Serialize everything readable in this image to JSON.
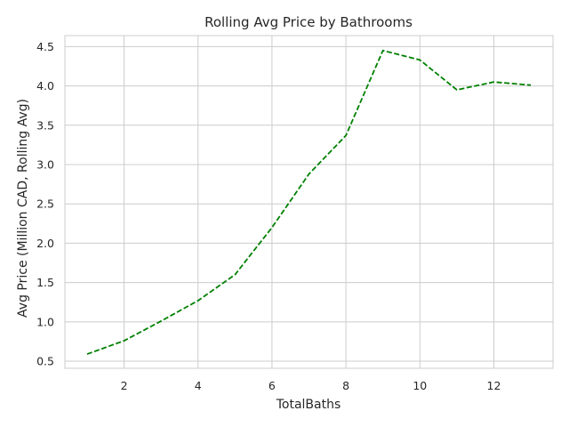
{
  "chart_data": {
    "type": "line",
    "title": "Rolling Avg Price by Bathrooms",
    "xlabel": "TotalBaths",
    "ylabel": "Avg Price (Million CAD, Rolling Avg)",
    "xlim": [
      0.4,
      13.6
    ],
    "ylim": [
      0.41,
      4.64
    ],
    "xticks": [
      2,
      4,
      6,
      8,
      10,
      12
    ],
    "yticks": [
      0.5,
      1.0,
      1.5,
      2.0,
      2.5,
      3.0,
      3.5,
      4.0,
      4.5
    ],
    "xtick_labels": [
      "2",
      "4",
      "6",
      "8",
      "10",
      "12"
    ],
    "ytick_labels": [
      "0.5",
      "1.0",
      "1.5",
      "2.0",
      "2.5",
      "3.0",
      "3.5",
      "4.0",
      "4.5"
    ],
    "grid": true,
    "series": [
      {
        "x": [
          1,
          2,
          3,
          4,
          5,
          6,
          7,
          8,
          9,
          10,
          11,
          12,
          13
        ],
        "values": [
          0.59,
          0.76,
          1.01,
          1.27,
          1.6,
          2.2,
          2.88,
          3.37,
          4.45,
          4.33,
          3.95,
          4.05,
          4.01
        ],
        "color": "#008000",
        "linestyle": "dashed"
      }
    ],
    "colors": {
      "grid": "#cccccc",
      "axes": "#cccccc",
      "text": "#262626"
    }
  }
}
